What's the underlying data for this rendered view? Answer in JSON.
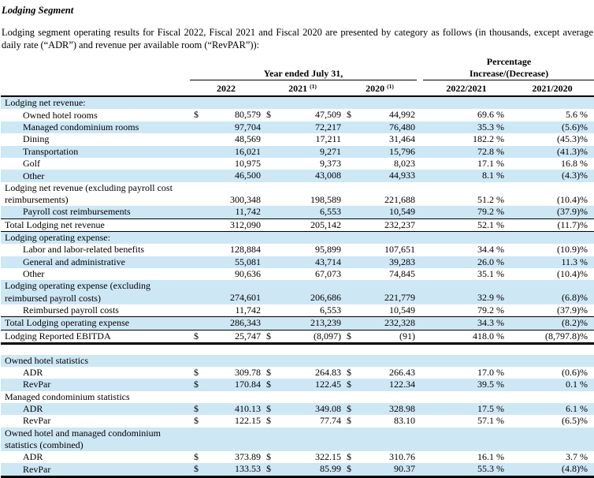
{
  "page": {
    "title": "Lodging Segment",
    "intro": "Lodging segment operating results for Fiscal 2022, Fiscal 2021 and Fiscal 2020 are presented by category as follows (in thousands, except average daily rate (“ADR”) and revenue per available room (“RevPAR”)):"
  },
  "colors": {
    "row_highlight": "#cee7f5",
    "text": "#000000",
    "rule": "#000000"
  },
  "table": {
    "header": {
      "pct_title": "Percentage",
      "group_years": "Year ended July 31,",
      "group_pct": "Increase/(Decrease)",
      "years": [
        "2022",
        "2021",
        "2020"
      ],
      "year_footnotes": [
        "",
        "(1)",
        "(1)"
      ],
      "pct_cols": [
        "2022/2021",
        "2021/2020"
      ]
    },
    "rows": [
      {
        "label": "Lodging net revenue:",
        "section": true,
        "bg": 1
      },
      {
        "label": "Owned hotel rooms",
        "indent": 1,
        "bg": 0,
        "d1": "$",
        "v1": "80,579",
        "d2": "$",
        "v2": "47,509",
        "d3": "$",
        "v3": "44,992",
        "p1": "69.6 %",
        "p2": "5.6 %"
      },
      {
        "label": "Managed condominium rooms",
        "indent": 1,
        "bg": 1,
        "v1": "97,704",
        "v2": "72,217",
        "v3": "76,480",
        "p1": "35.3 %",
        "p2": "(5.6)%"
      },
      {
        "label": "Dining",
        "indent": 1,
        "bg": 0,
        "v1": "48,569",
        "v2": "17,211",
        "v3": "31,464",
        "p1": "182.2 %",
        "p2": "(45.3)%"
      },
      {
        "label": "Transportation",
        "indent": 1,
        "bg": 1,
        "v1": "16,021",
        "v2": "9,271",
        "v3": "15,796",
        "p1": "72.8 %",
        "p2": "(41.3)%"
      },
      {
        "label": "Golf",
        "indent": 1,
        "bg": 0,
        "v1": "10,975",
        "v2": "9,373",
        "v3": "8,023",
        "p1": "17.1 %",
        "p2": "16.8 %"
      },
      {
        "label": "Other",
        "indent": 1,
        "bg": 1,
        "v1": "46,500",
        "v2": "43,008",
        "v3": "44,933",
        "p1": "8.1 %",
        "p2": "(4.3)%"
      },
      {
        "label": "Lodging net revenue (excluding payroll cost reimbursements)",
        "bg": 0,
        "v1": "300,348",
        "v2": "198,589",
        "v3": "221,688",
        "p1": "51.2 %",
        "p2": "(10.4)%"
      },
      {
        "label": "Payroll cost reimbursements",
        "indent": 1,
        "bg": 1,
        "v1": "11,742",
        "v2": "6,553",
        "v3": "10,549",
        "p1": "79.2 %",
        "p2": "(37.9)%"
      },
      {
        "label": "Total Lodging net revenue",
        "bg": 0,
        "cls": "bt1 bb1",
        "v1": "312,090",
        "v2": "205,142",
        "v3": "232,237",
        "p1": "52.1 %",
        "p2": "(11.7)%"
      },
      {
        "label": "Lodging operating expense:",
        "section": true,
        "bg": 1
      },
      {
        "label": "Labor and labor-related benefits",
        "indent": 1,
        "bg": 0,
        "v1": "128,884",
        "v2": "95,899",
        "v3": "107,651",
        "p1": "34.4 %",
        "p2": "(10.9)%"
      },
      {
        "label": "General and administrative",
        "indent": 1,
        "bg": 1,
        "v1": "55,081",
        "v2": "43,714",
        "v3": "39,283",
        "p1": "26.0 %",
        "p2": "11.3 %"
      },
      {
        "label": "Other",
        "indent": 1,
        "bg": 0,
        "v1": "90,636",
        "v2": "67,073",
        "v3": "74,845",
        "p1": "35.1 %",
        "p2": "(10.4)%"
      },
      {
        "label": "Lodging operating expense (excluding reimbursed payroll costs)",
        "bg": 1,
        "v1": "274,601",
        "v2": "206,686",
        "v3": "221,779",
        "p1": "32.9 %",
        "p2": "(6.8)%"
      },
      {
        "label": "Reimbursed payroll costs",
        "indent": 1,
        "bg": 0,
        "v1": "11,742",
        "v2": "6,553",
        "v3": "10,549",
        "p1": "79.2 %",
        "p2": "(37.9)%"
      },
      {
        "label": "Total Lodging operating expense",
        "bg": 1,
        "cls": "bt1",
        "v1": "286,343",
        "v2": "213,239",
        "v3": "232,328",
        "p1": "34.3 %",
        "p2": "(8.2)%"
      },
      {
        "label": "Lodging Reported EBITDA",
        "bg": 0,
        "cls": "bt1 bb3",
        "d1": "$",
        "v1": "25,747",
        "d2": "$",
        "v2": "(8,097)",
        "d3": "$",
        "v3": "(91)",
        "p1": "418.0 %",
        "p2": "(8,797.8)%"
      },
      {
        "spacer": true
      },
      {
        "label": "Owned hotel statistics",
        "section": true,
        "bg": 1
      },
      {
        "label": "ADR",
        "indent": 1,
        "bg": 0,
        "d1": "$",
        "v1": "309.78",
        "d2": "$",
        "v2": "264.83",
        "d3": "$",
        "v3": "266.43",
        "p1": "17.0 %",
        "p2": "(0.6)%"
      },
      {
        "label": "RevPar",
        "indent": 1,
        "bg": 1,
        "d1": "$",
        "v1": "170.84",
        "d2": "$",
        "v2": "122.45",
        "d3": "$",
        "v3": "122.34",
        "p1": "39.5 %",
        "p2": "0.1 %"
      },
      {
        "label": "Managed condominium statistics",
        "section": true,
        "bg": 0
      },
      {
        "label": "ADR",
        "indent": 1,
        "bg": 1,
        "d1": "$",
        "v1": "410.13",
        "d2": "$",
        "v2": "349.08",
        "d3": "$",
        "v3": "328.98",
        "p1": "17.5 %",
        "p2": "6.1 %"
      },
      {
        "label": "RevPar",
        "indent": 1,
        "bg": 0,
        "d1": "$",
        "v1": "122.15",
        "d2": "$",
        "v2": "77.74",
        "d3": "$",
        "v3": "83.10",
        "p1": "57.1 %",
        "p2": "(6.5)%"
      },
      {
        "label": "Owned hotel and managed condominium statistics (combined)",
        "section": true,
        "bg": 1
      },
      {
        "label": "ADR",
        "indent": 1,
        "bg": 0,
        "d1": "$",
        "v1": "373.89",
        "d2": "$",
        "v2": "322.15",
        "d3": "$",
        "v3": "310.76",
        "p1": "16.1 %",
        "p2": "3.7 %"
      },
      {
        "label": "RevPar",
        "indent": 1,
        "bg": 1,
        "cls": "bb3",
        "d1": "$",
        "v1": "133.53",
        "d2": "$",
        "v2": "85.99",
        "d3": "$",
        "v3": "90.37",
        "p1": "55.3 %",
        "p2": "(4.8)%"
      }
    ]
  }
}
